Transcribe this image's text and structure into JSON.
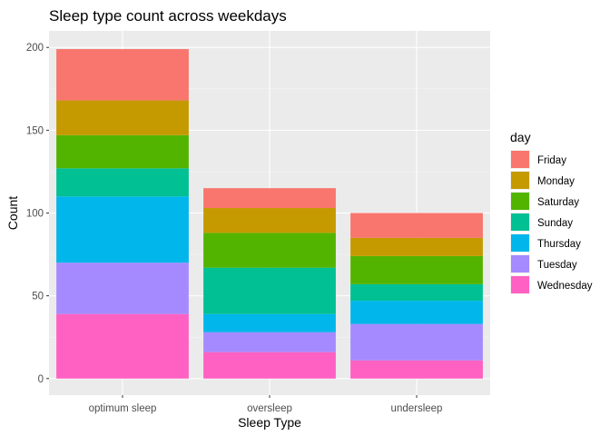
{
  "chart_data": {
    "type": "bar",
    "stacked": true,
    "title": "Sleep type count across weekdays",
    "xlabel": "Sleep Type",
    "ylabel": "Count",
    "categories": [
      "optimum sleep",
      "oversleep",
      "undersleep"
    ],
    "ylim": [
      -10,
      210
    ],
    "yticks": [
      0,
      50,
      100,
      150,
      200
    ],
    "grid": true,
    "legend_title": "day",
    "legend_position": "right",
    "series": [
      {
        "name": "Wednesday",
        "color": "#FF61C3",
        "values": [
          39,
          16,
          11
        ]
      },
      {
        "name": "Tuesday",
        "color": "#A58AFF",
        "values": [
          31,
          12,
          22
        ]
      },
      {
        "name": "Thursday",
        "color": "#00B6EB",
        "values": [
          40,
          11,
          14
        ]
      },
      {
        "name": "Sunday",
        "color": "#00C094",
        "values": [
          17,
          28,
          10
        ]
      },
      {
        "name": "Saturday",
        "color": "#53B400",
        "values": [
          20,
          21,
          17
        ]
      },
      {
        "name": "Monday",
        "color": "#C49A00",
        "values": [
          21,
          15,
          11
        ]
      },
      {
        "name": "Friday",
        "color": "#F8766D",
        "values": [
          31,
          12,
          15
        ]
      }
    ],
    "legend_order": [
      "Friday",
      "Monday",
      "Saturday",
      "Sunday",
      "Thursday",
      "Tuesday",
      "Wednesday"
    ]
  }
}
